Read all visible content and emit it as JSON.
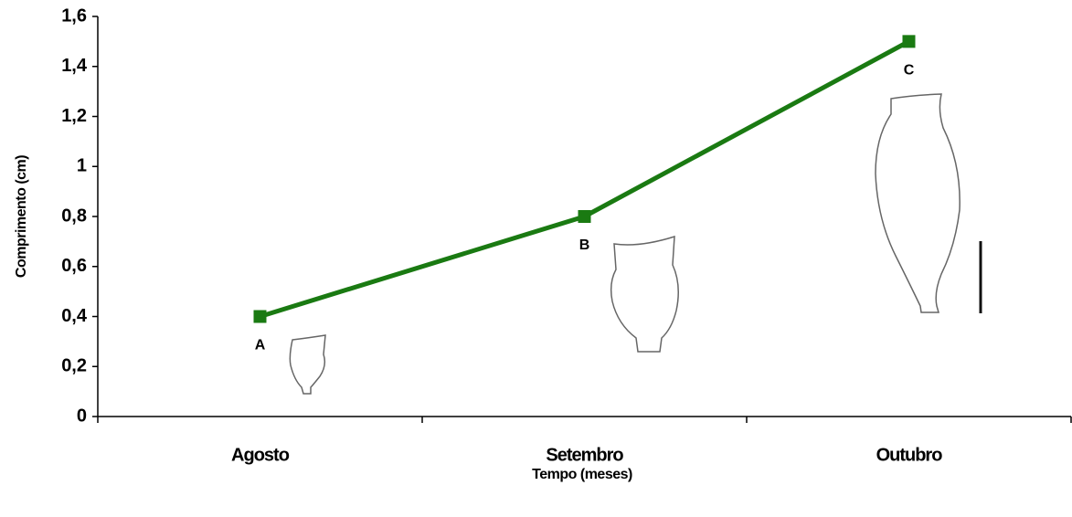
{
  "chart_data": {
    "type": "line",
    "x_label": "Tempo (meses)",
    "y_label": "Comprimento (cm)",
    "categories": [
      "Agosto",
      "Setembro",
      "Outubro"
    ],
    "series": [
      {
        "name": "Comprimento",
        "color": "#1a7a12",
        "values": [
          0.4,
          0.8,
          1.5
        ]
      }
    ],
    "point_labels": [
      "A",
      "B",
      "C"
    ],
    "ylim": [
      0,
      1.6
    ],
    "yticks": [
      0,
      {
        "value": 0.2,
        "label": "0,2"
      },
      {
        "value": 0.4,
        "label": "0,4"
      },
      {
        "value": 0.6,
        "label": "0,6"
      },
      {
        "value": 0.8,
        "label": "0,8"
      },
      1,
      {
        "value": 1.2,
        "label": "1,2"
      },
      {
        "value": 1.4,
        "label": "1,4"
      },
      {
        "value": 1.6,
        "label": "1,6"
      }
    ]
  }
}
